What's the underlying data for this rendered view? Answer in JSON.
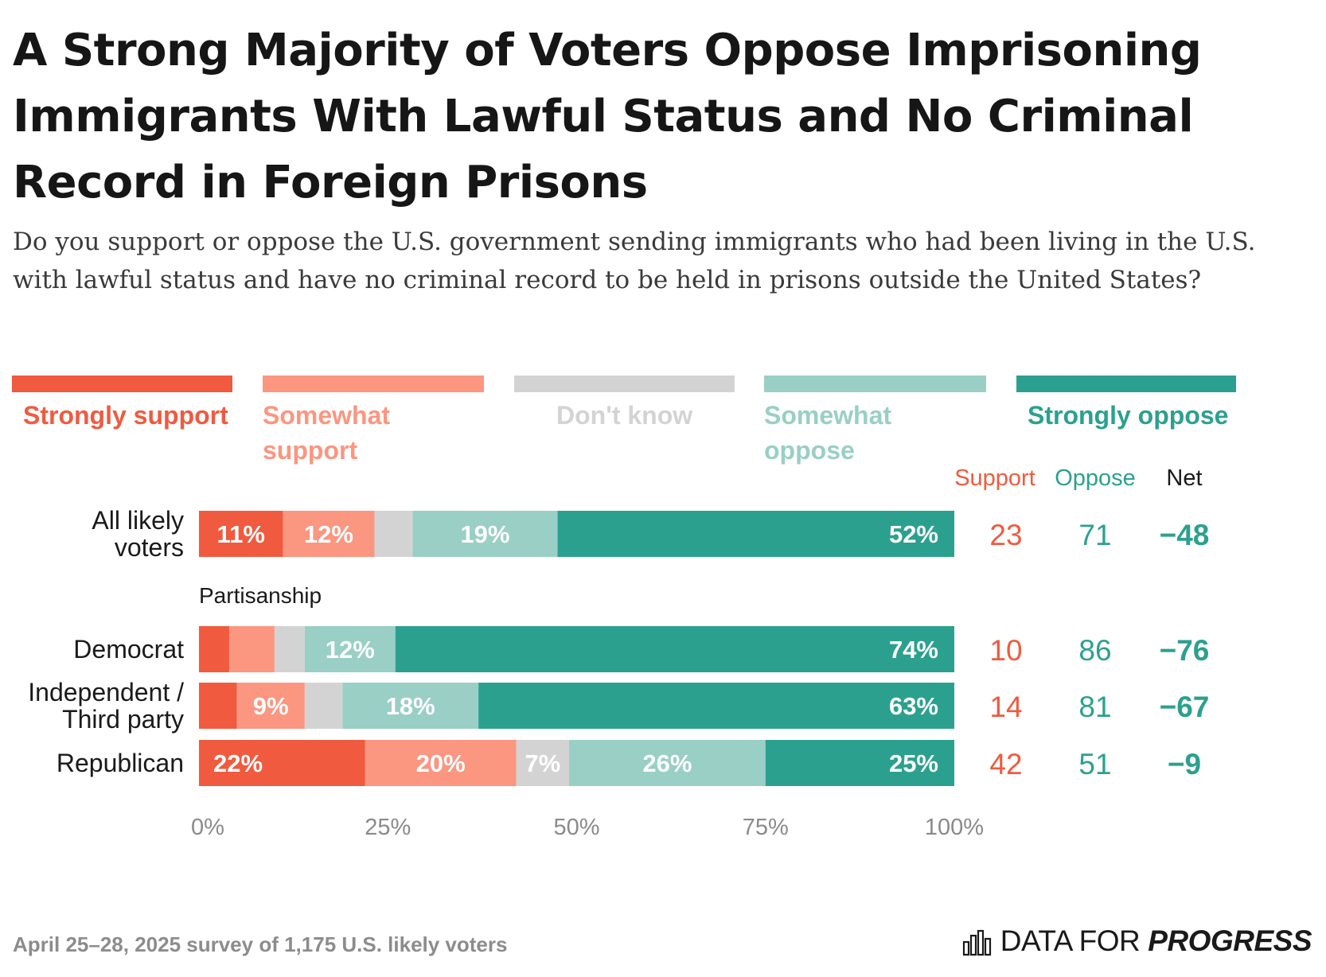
{
  "title": "A Strong Majority of Voters Oppose Imprisoning Immigrants With Lawful Status and No Criminal Record in Foreign Prisons",
  "subtitle": "Do you support or oppose the U.S. government sending immigrants who had been living in the U.S. with lawful status and have no criminal record to be held in prisons outside the United States?",
  "colors": {
    "strongly_support": "#f05a3f",
    "somewhat_support": "#fb9680",
    "dont_know": "#d3d3d3",
    "somewhat_oppose": "#99cfc5",
    "strongly_oppose": "#2ca08f",
    "support_text": "#f05a3f",
    "oppose_text": "#2ca08f",
    "net_text": "#2ca08f"
  },
  "legend": [
    {
      "label": "Strongly support",
      "color": "#f05a3f"
    },
    {
      "label": "Somewhat support",
      "color": "#fb9680"
    },
    {
      "label": "Don't know",
      "color": "#d3d3d3"
    },
    {
      "label": "Somewhat oppose",
      "color": "#99cfc5"
    },
    {
      "label": "Strongly oppose",
      "color": "#2ca08f"
    }
  ],
  "chart_data": {
    "type": "bar",
    "orientation": "horizontal",
    "stacked": true,
    "categories": [
      "All likely voters",
      "Democrat",
      "Independent / Third party",
      "Republican"
    ],
    "group_label": "Partisanship",
    "series": [
      {
        "name": "Strongly support",
        "values": [
          11,
          4,
          5,
          22
        ],
        "labels": [
          "11%",
          "",
          "",
          "22%"
        ]
      },
      {
        "name": "Somewhat support",
        "values": [
          12,
          6,
          9,
          20
        ],
        "labels": [
          "12%",
          "",
          "9%",
          "20%"
        ]
      },
      {
        "name": "Don't know",
        "values": [
          5,
          4,
          5,
          7
        ],
        "labels": [
          "",
          "",
          "",
          "7%"
        ]
      },
      {
        "name": "Somewhat oppose",
        "values": [
          19,
          12,
          18,
          26
        ],
        "labels": [
          "19%",
          "12%",
          "18%",
          "26%"
        ]
      },
      {
        "name": "Strongly oppose",
        "values": [
          52,
          74,
          63,
          25
        ],
        "labels": [
          "52%",
          "74%",
          "63%",
          "25%"
        ]
      }
    ],
    "columns": {
      "headers": [
        "Support",
        "Oppose",
        "Net"
      ],
      "support": [
        "23",
        "10",
        "14",
        "42"
      ],
      "oppose": [
        "71",
        "86",
        "81",
        "51"
      ],
      "net": [
        "−48",
        "−76",
        "−67",
        "−9"
      ]
    },
    "xlim": [
      0,
      100
    ],
    "x_ticks": [
      "0%",
      "25%",
      "50%",
      "75%",
      "100%"
    ],
    "legend_position": "top"
  },
  "footnote": "April 25–28, 2025 survey of 1,175 U.S. likely voters",
  "brand": {
    "name": "DATA FOR",
    "emphasis": "PROGRESS",
    "icon": "bar-chart-icon"
  }
}
